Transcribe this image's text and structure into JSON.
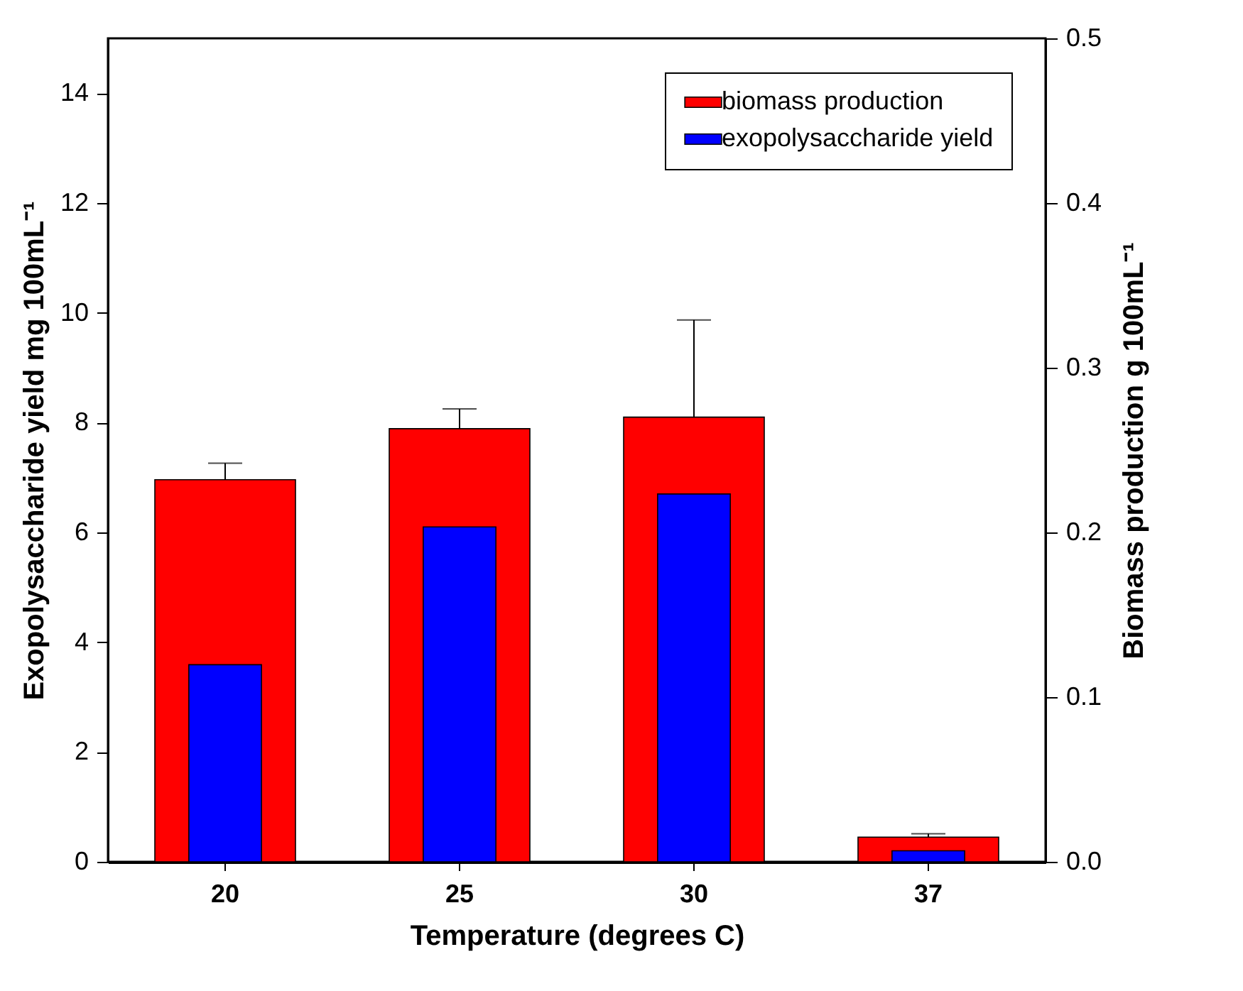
{
  "chart_data": {
    "type": "bar",
    "xlabel": "Temperature (degrees C)",
    "ylabel": "Exopolysaccharide yield mg 100mL⁻¹",
    "y2label": "Biomass production  g 100mL⁻¹",
    "categories": [
      "20",
      "25",
      "30",
      "37"
    ],
    "series": [
      {
        "name": "biomass production",
        "color": "#ff0000",
        "axis": "y2",
        "values": [
          0.232,
          0.263,
          0.27,
          0.015
        ],
        "errors": [
          [
            0.232,
            0.242
          ],
          [
            0.263,
            0.275
          ],
          [
            0.27,
            0.329
          ],
          [
            0.015,
            0.017
          ]
        ]
      },
      {
        "name": "exopolysaccharide yield",
        "color": "#0000ff",
        "values": [
          3.59,
          6.1,
          6.7,
          0.2
        ]
      }
    ],
    "ylim": [
      0,
      15
    ],
    "yticks": [
      0,
      2,
      4,
      6,
      8,
      10,
      12,
      14
    ],
    "y2lim": [
      0,
      0.5
    ],
    "y2ticks": [
      {
        "value": 0,
        "label": "0.0"
      },
      0.1,
      0.2,
      0.3,
      0.4,
      0.5
    ],
    "legend": "top right",
    "grid": false
  }
}
